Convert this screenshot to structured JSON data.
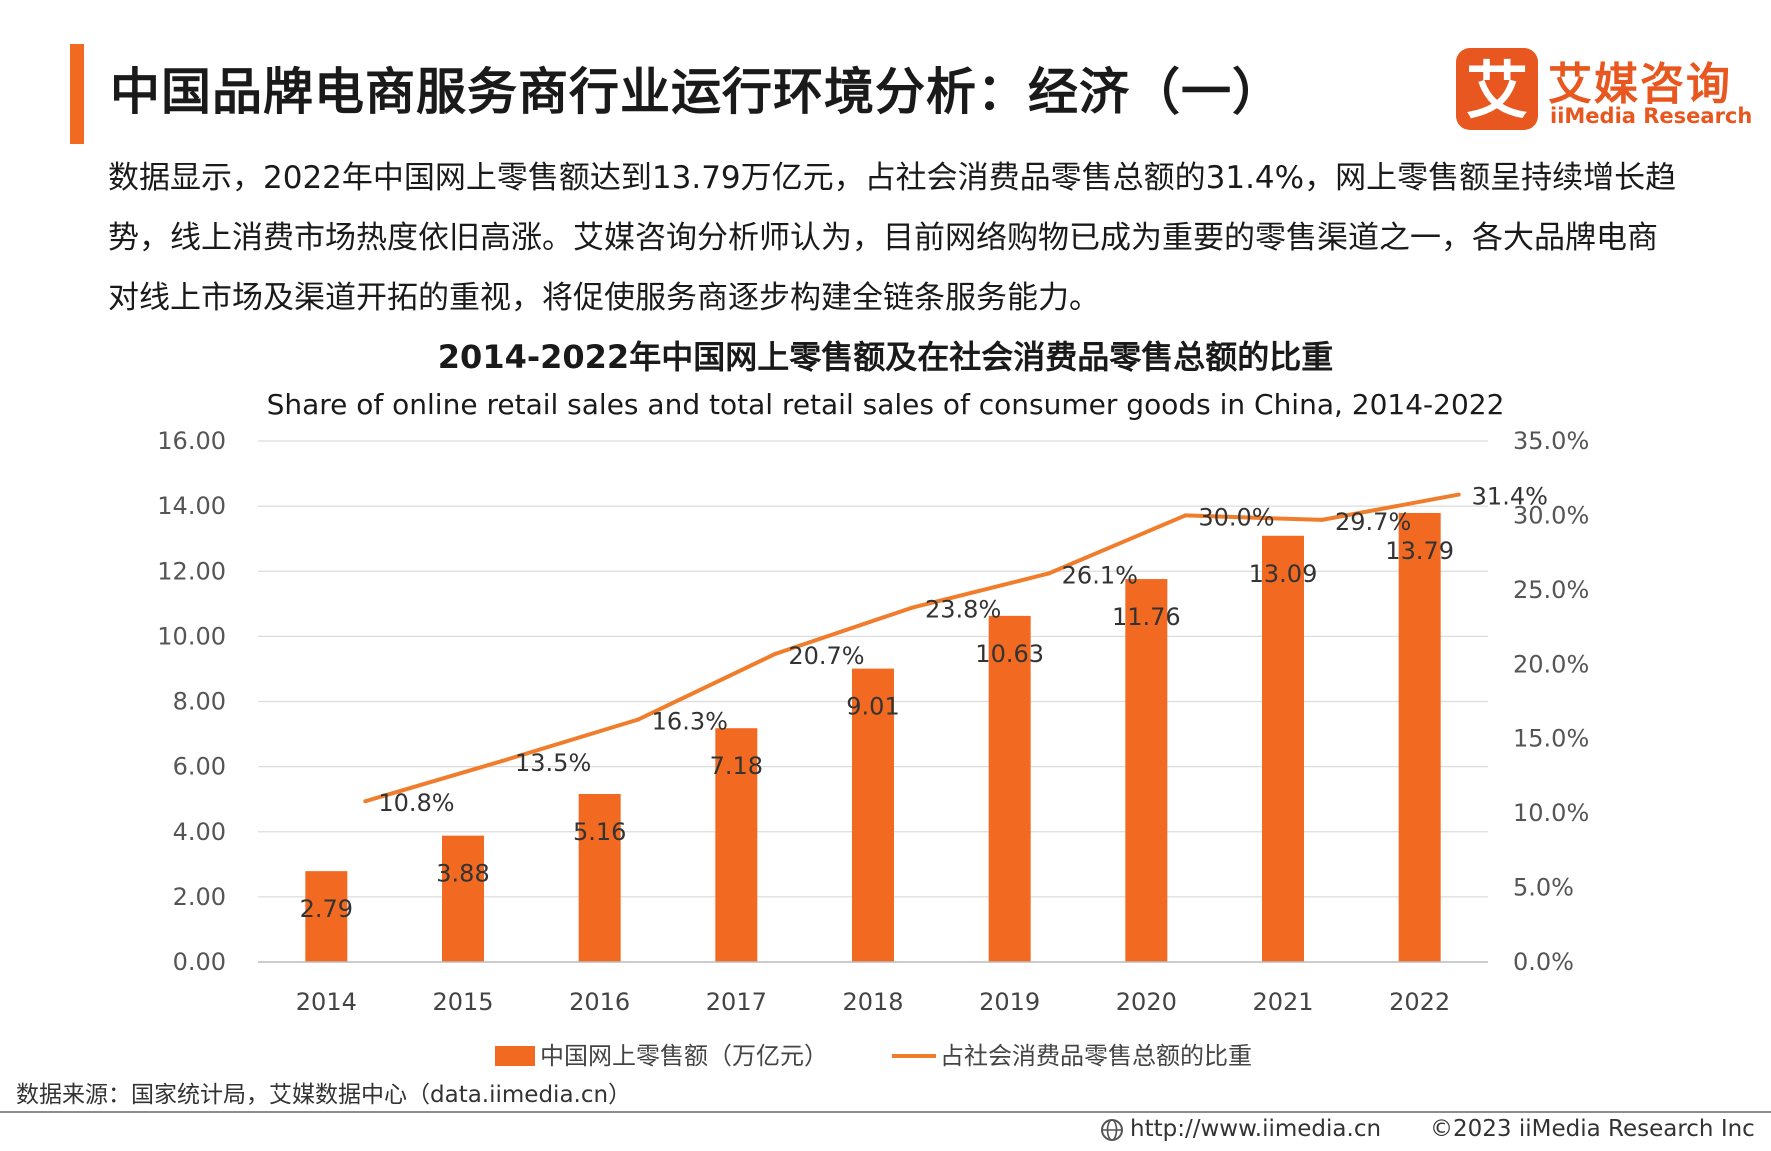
{
  "header": {
    "title": "中国品牌电商服务商行业运行环境分析：经济（一）",
    "logo_cn": "艾媒咨询",
    "logo_en": "iiMedia Research",
    "logo_mark_glyph": "艾"
  },
  "intro": "数据显示，2022年中国网上零售额达到13.79万亿元，占社会消费品零售总额的31.4%，网上零售额呈持续增长趋势，线上消费市场热度依旧高涨。艾媒咨询分析师认为，目前网络购物已成为重要的零售渠道之一，各大品牌电商对线上市场及渠道开拓的重视，将促使服务商逐步构建全链条服务能力。",
  "chart_data": {
    "type": "bar",
    "title": "2014-2022年中国网上零售额及在社会消费品零售总额的比重",
    "subtitle": "Share of online retail sales and total retail sales of consumer goods in China, 2014-2022",
    "categories": [
      "2014",
      "2015",
      "2016",
      "2017",
      "2018",
      "2019",
      "2020",
      "2021",
      "2022"
    ],
    "series": [
      {
        "name": "中国网上零售额（万亿元）",
        "type": "bar",
        "axis": "left",
        "values": [
          2.79,
          3.88,
          5.16,
          7.18,
          9.01,
          10.63,
          11.76,
          13.09,
          13.79
        ],
        "labels": [
          "2.79",
          "3.88",
          "5.16",
          "7.18",
          "9.01",
          "10.63",
          "11.76",
          "13.09",
          "13.79"
        ]
      },
      {
        "name": "占社会消费品零售总额的比重",
        "type": "line",
        "axis": "right",
        "values": [
          10.8,
          13.5,
          16.3,
          20.7,
          23.8,
          26.1,
          30.0,
          29.7,
          31.4
        ],
        "labels": [
          "10.8%",
          "13.5%",
          "16.3%",
          "20.7%",
          "23.8%",
          "26.1%",
          "30.0%",
          "29.7%",
          "31.4%"
        ]
      }
    ],
    "y_left": {
      "range": [
        0,
        16
      ],
      "ticks": [
        "0.00",
        "2.00",
        "4.00",
        "6.00",
        "8.00",
        "10.00",
        "12.00",
        "14.00",
        "16.00"
      ]
    },
    "y_right": {
      "range": [
        0,
        35
      ],
      "ticks": [
        "0.0%",
        "5.0%",
        "10.0%",
        "15.0%",
        "20.0%",
        "25.0%",
        "30.0%",
        "35.0%"
      ]
    },
    "grid": true,
    "legend_position": "bottom-center",
    "colors": {
      "bar": "#f26a21",
      "line": "#f07d2c"
    }
  },
  "footer": {
    "source": "数据来源：国家统计局，艾媒数据中心（data.iimedia.cn）",
    "url": "http://www.iimedia.cn",
    "copyright": "©2023  iiMedia Research  Inc"
  }
}
